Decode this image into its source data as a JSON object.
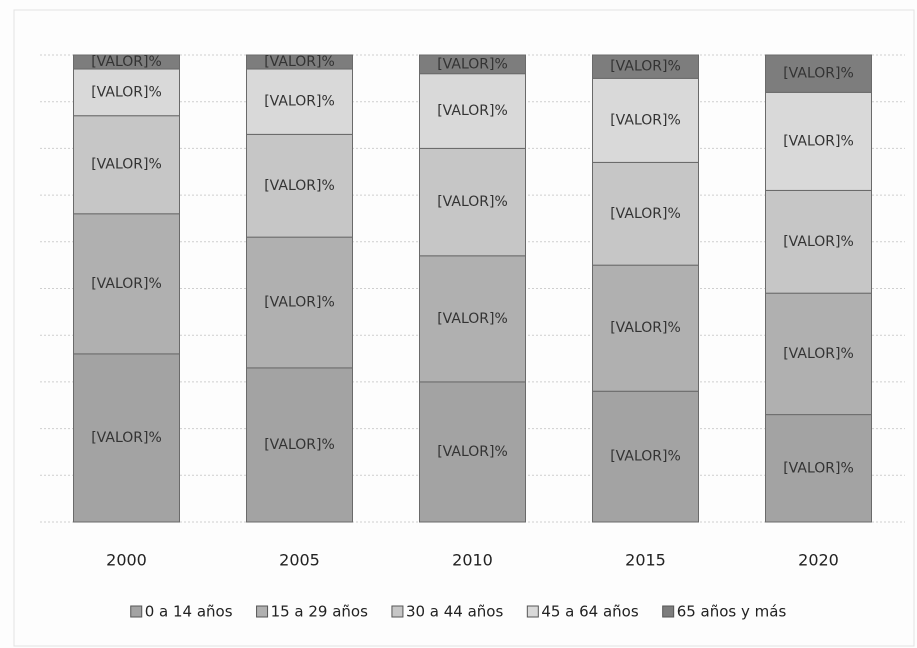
{
  "chart_data": {
    "type": "stacked-bar",
    "categories": [
      "2000",
      "2005",
      "2010",
      "2015",
      "2020"
    ],
    "series": [
      {
        "name": "0 a 14 años",
        "color": "#a3a3a3",
        "values": [
          36,
          33,
          30,
          28,
          23
        ],
        "value_labels": [
          "[VALOR]%",
          "[VALOR]%",
          "[VALOR]%",
          "[VALOR]%",
          "[VALOR]%"
        ]
      },
      {
        "name": "15 a 29 años",
        "color": "#b0b0b0",
        "values": [
          30,
          28,
          27,
          27,
          26
        ],
        "value_labels": [
          "[VALOR]%",
          "[VALOR]%",
          "[VALOR]%",
          "[VALOR]%",
          "[VALOR]%"
        ]
      },
      {
        "name": "30 a 44 años",
        "color": "#c6c6c6",
        "values": [
          21,
          22,
          23,
          22,
          22
        ],
        "value_labels": [
          "[VALOR]%",
          "[VALOR]%",
          "[VALOR]%",
          "[VALOR]%",
          "[VALOR]%"
        ]
      },
      {
        "name": "45 a 64 años",
        "color": "#d9d9d9",
        "values": [
          10,
          14,
          16,
          18,
          21
        ],
        "value_labels": [
          "[VALOR]%",
          "[VALOR]%",
          "[VALOR]%",
          "[VALOR]%",
          "[VALOR]%"
        ]
      },
      {
        "name": "65 años y más",
        "color": "#7d7d7d",
        "values": [
          3,
          3,
          4,
          5,
          8
        ],
        "value_labels": [
          "[VALOR]%",
          "[VALOR]%",
          "[VALOR]%",
          "[VALOR]%",
          "[VALOR]%"
        ]
      }
    ],
    "ylim": [
      0,
      100
    ],
    "yticks": [
      0,
      10,
      20,
      30,
      40,
      50,
      60,
      70,
      80,
      90,
      100
    ],
    "grid": true
  }
}
